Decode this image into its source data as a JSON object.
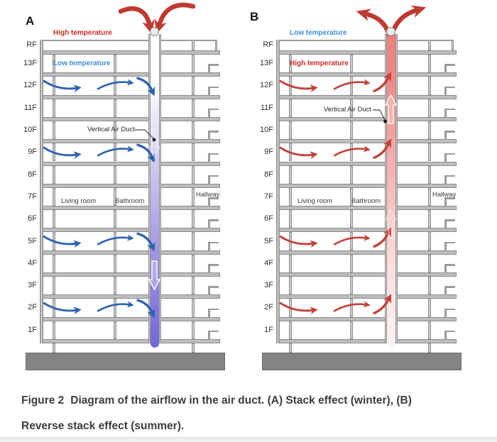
{
  "figure": {
    "caption": {
      "prefix": "Figure 2",
      "line1": "Diagram of the airflow in the air duct. (A) Stack effect (winter), (B)",
      "line2": "Reverse stack effect (summer)."
    },
    "panels": [
      {
        "label": "A",
        "outside_temp": {
          "text": "High temperature",
          "color": "#cf2b25"
        },
        "indoor_temp": {
          "text": "Low temperature",
          "color": "#3e8ed8"
        },
        "duct_label": "Vertical Air Duct",
        "room_labels": {
          "living_room": "Living room",
          "bathroom": "Bathroom",
          "hallway": "Hallway"
        },
        "floor_labels": [
          "RF",
          "13F",
          "12F",
          "11F",
          "10F",
          "9F",
          "8F",
          "7F",
          "6F",
          "5F",
          "4F",
          "3F",
          "2F",
          "1F"
        ],
        "airflow_floors": [
          "12F",
          "9F",
          "5F",
          "2F"
        ],
        "duct_flow_direction": "down",
        "floor_arrow_color": "#2e63b0",
        "roof_arrow_color": "#bf3a30",
        "duct_gradient": [
          "#ffffff",
          "#ffffff",
          "#c9c4ee",
          "#9d92e3",
          "#6f68d6"
        ]
      },
      {
        "label": "B",
        "outside_temp": {
          "text": "Low temperature",
          "color": "#3e8ed8"
        },
        "indoor_temp": {
          "text": "High temperature",
          "color": "#cf2b25"
        },
        "duct_label": "Vertical Air Duct",
        "room_labels": {
          "living_room": "Living room",
          "bathroom": "Bathroom",
          "hallway": "Hallway"
        },
        "floor_labels": [
          "RF",
          "13F",
          "12F",
          "11F",
          "10F",
          "9F",
          "8F",
          "7F",
          "6F",
          "5F",
          "4F",
          "3F",
          "2F",
          "1F"
        ],
        "airflow_floors": [
          "12F",
          "9F",
          "5F",
          "2F"
        ],
        "duct_flow_direction": "up",
        "floor_arrow_color": "#c2423a",
        "roof_arrow_color": "#bf3a30",
        "duct_gradient": [
          "#ec7f7c",
          "#ee8a87",
          "#f5b5b2",
          "#fbdcdb",
          "#fdf3f3"
        ]
      }
    ]
  }
}
